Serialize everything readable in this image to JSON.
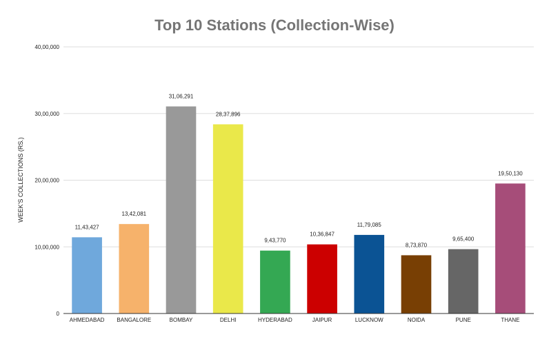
{
  "chart_data": {
    "type": "bar",
    "title": "Top 10 Stations (Collection-Wise)",
    "xlabel": "",
    "ylabel": "WEEK'S COLLECTIONS (RS.)",
    "ylim": [
      0,
      4000000
    ],
    "yticks": [
      {
        "value": 0,
        "label": "0"
      },
      {
        "value": 1000000,
        "label": "10,00,000"
      },
      {
        "value": 2000000,
        "label": "20,00,000"
      },
      {
        "value": 3000000,
        "label": "30,00,000"
      },
      {
        "value": 4000000,
        "label": "40,00,000"
      }
    ],
    "grid": true,
    "legend": "none",
    "categories": [
      "AHMEDABAD",
      "BANGALORE",
      "BOMBAY",
      "DELHI",
      "HYDERABAD",
      "JAIPUR",
      "LUCKNOW",
      "NOIDA",
      "PUNE",
      "THANE"
    ],
    "values": [
      1143427,
      1342081,
      3106291,
      2837896,
      943770,
      1036847,
      1179085,
      873870,
      965400,
      1950130
    ],
    "value_labels": [
      "11,43,427",
      "13,42,081",
      "31,06,291",
      "28,37,896",
      "9,43,770",
      "10,36,847",
      "11,79,085",
      "8,73,870",
      "9,65,400",
      "19,50,130"
    ],
    "colors": [
      "#6fa8dc",
      "#f6b26b",
      "#999999",
      "#eae84a",
      "#34a853",
      "#cc0000",
      "#0b5394",
      "#783f04",
      "#666666",
      "#a64d79"
    ]
  }
}
